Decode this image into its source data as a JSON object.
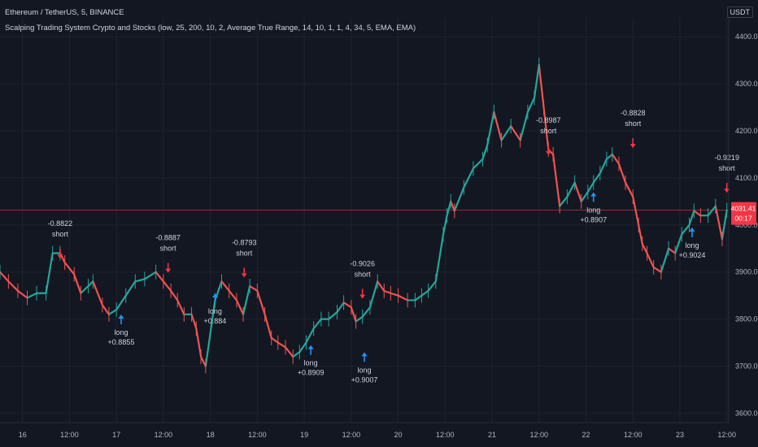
{
  "header": {
    "title": "Ethereum / TetherUS, 5, BINANCE",
    "indicator": "Scalping Trading System Crypto and Stocks (low, 25, 200, 10, 2, Average True Range, 14, 10, 1, 1, 4, 34, 5, EMA, EMA)",
    "currency": "USDT"
  },
  "colors": {
    "background": "#131722",
    "grid": "#1f2330",
    "up": "#26a69a",
    "down": "#ef5350",
    "long_arrow": "#2196f3",
    "short_arrow": "#f23645",
    "price_line": "#f23645",
    "axis_text": "#b2b5be"
  },
  "chart_data": {
    "type": "line",
    "title": "Ethereum / TetherUS, 5, BINANCE",
    "y_ticks": [
      "3600.00",
      "3700.00",
      "3800.00",
      "3900.00",
      "4000.00",
      "4100.00",
      "4200.00",
      "4300.00",
      "4400.00"
    ],
    "ylim": [
      3580,
      4440
    ],
    "x_ticks": [
      {
        "t": 16,
        "label": "16"
      },
      {
        "t": 16.5,
        "label": "12:00"
      },
      {
        "t": 17,
        "label": "17"
      },
      {
        "t": 17.5,
        "label": "12:00"
      },
      {
        "t": 18,
        "label": "18"
      },
      {
        "t": 18.5,
        "label": "12:00"
      },
      {
        "t": 19,
        "label": "19"
      },
      {
        "t": 19.5,
        "label": "12:00"
      },
      {
        "t": 20,
        "label": "20"
      },
      {
        "t": 20.5,
        "label": "12:00"
      },
      {
        "t": 21,
        "label": "21"
      },
      {
        "t": 21.5,
        "label": "12:00"
      },
      {
        "t": 22,
        "label": "22"
      },
      {
        "t": 22.5,
        "label": "12:00"
      },
      {
        "t": 23,
        "label": "23"
      },
      {
        "t": 23.5,
        "label": "12:00"
      }
    ],
    "xlim": [
      15.76,
      23.52
    ],
    "series": [
      {
        "name": "ETHUSDT",
        "x": [
          15.76,
          15.85,
          15.95,
          16.05,
          16.15,
          16.25,
          16.32,
          16.4,
          16.45,
          16.55,
          16.62,
          16.7,
          16.75,
          16.85,
          16.92,
          17.0,
          17.1,
          17.2,
          17.3,
          17.42,
          17.5,
          17.58,
          17.65,
          17.72,
          17.8,
          17.85,
          17.9,
          17.95,
          18.05,
          18.12,
          18.2,
          18.28,
          18.35,
          18.42,
          18.5,
          18.58,
          18.65,
          18.72,
          18.8,
          18.88,
          18.95,
          19.02,
          19.1,
          19.18,
          19.26,
          19.35,
          19.42,
          19.5,
          19.55,
          19.62,
          19.7,
          19.78,
          19.85,
          19.92,
          20.0,
          20.1,
          20.18,
          20.25,
          20.32,
          20.4,
          20.48,
          20.52,
          20.56,
          20.6,
          20.7,
          20.8,
          20.9,
          20.95,
          21.02,
          21.1,
          21.2,
          21.3,
          21.38,
          21.45,
          21.5,
          21.55,
          21.6,
          21.65,
          21.72,
          21.8,
          21.88,
          21.95,
          22.02,
          22.08,
          22.15,
          22.22,
          22.28,
          22.35,
          22.42,
          22.5,
          22.56,
          22.6,
          22.65,
          22.72,
          22.8,
          22.88,
          22.95,
          23.02,
          23.1,
          23.15,
          23.22,
          23.3,
          23.38,
          23.45,
          23.5
        ],
        "values": [
          3900,
          3880,
          3860,
          3845,
          3855,
          3855,
          3940,
          3940,
          3920,
          3895,
          3855,
          3870,
          3880,
          3830,
          3810,
          3820,
          3850,
          3880,
          3885,
          3900,
          3880,
          3860,
          3840,
          3810,
          3810,
          3780,
          3720,
          3700,
          3840,
          3880,
          3860,
          3840,
          3810,
          3870,
          3860,
          3810,
          3760,
          3750,
          3740,
          3720,
          3730,
          3750,
          3780,
          3800,
          3800,
          3815,
          3835,
          3825,
          3795,
          3805,
          3825,
          3880,
          3860,
          3855,
          3850,
          3840,
          3840,
          3850,
          3860,
          3880,
          3980,
          4020,
          4050,
          4030,
          4080,
          4120,
          4140,
          4170,
          4240,
          4180,
          4210,
          4180,
          4240,
          4270,
          4340,
          4250,
          4160,
          4150,
          4040,
          4060,
          4090,
          4050,
          4070,
          4090,
          4110,
          4140,
          4150,
          4130,
          4090,
          4060,
          4000,
          3960,
          3940,
          3910,
          3900,
          3950,
          3940,
          3980,
          4000,
          4030,
          4020,
          4020,
          4040,
          3970,
          4031.41
        ]
      }
    ],
    "last_price": "4031.41",
    "countdown": "00:17",
    "signals": [
      {
        "type": "short",
        "t": 16.4,
        "price": 3925,
        "value": "-0.8822",
        "label": "short"
      },
      {
        "type": "long",
        "t": 17.05,
        "price": 3820,
        "value": "+0.8855",
        "label": "long"
      },
      {
        "type": "short",
        "t": 17.55,
        "price": 3895,
        "value": "-0.8887",
        "label": "short"
      },
      {
        "type": "long",
        "t": 18.05,
        "price": 3865,
        "value": "+0.884",
        "label": "long"
      },
      {
        "type": "short",
        "t": 18.36,
        "price": 3885,
        "value": "-0.8793",
        "label": "short"
      },
      {
        "type": "long",
        "t": 19.07,
        "price": 3755,
        "value": "+0.8909",
        "label": "long"
      },
      {
        "type": "short",
        "t": 19.62,
        "price": 3840,
        "value": "-0.9026",
        "label": "short"
      },
      {
        "type": "long",
        "t": 19.64,
        "price": 3740,
        "value": "+0.9007",
        "label": "long"
      },
      {
        "type": "short",
        "t": 21.6,
        "price": 4145,
        "value": "-0.8987",
        "label": "short"
      },
      {
        "type": "long",
        "t": 22.08,
        "price": 4080,
        "value": "+0.8907",
        "label": "long"
      },
      {
        "type": "short",
        "t": 22.5,
        "price": 4160,
        "value": "-0.8828",
        "label": "short"
      },
      {
        "type": "long",
        "t": 23.13,
        "price": 4005,
        "value": "+0.9024",
        "label": "long"
      },
      {
        "type": "short",
        "t": 23.5,
        "price": 4065,
        "value": "-0.9219",
        "label": "short"
      }
    ]
  }
}
